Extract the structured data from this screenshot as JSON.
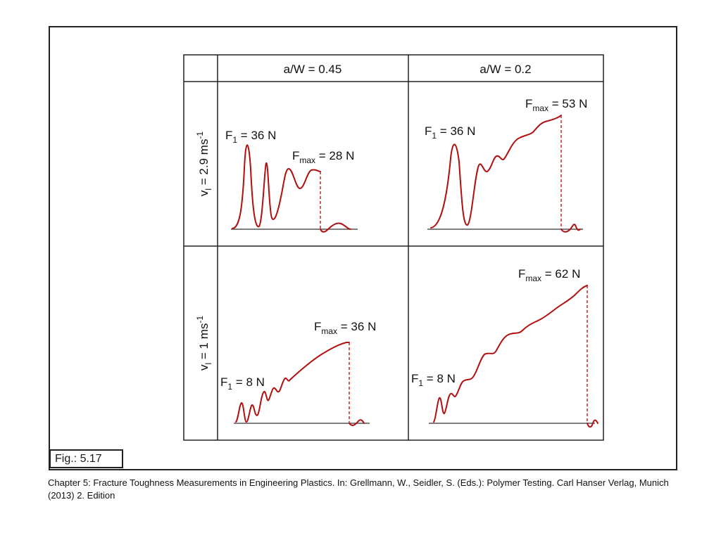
{
  "figure": {
    "columns": [
      {
        "label": "a/W = 0.45"
      },
      {
        "label": "a/W = 0.2"
      }
    ],
    "rows": [
      {
        "label_main": "v",
        "label_sub": "l",
        "label_rest": " = 2.9 ms",
        "label_sup": "-1"
      },
      {
        "label_main": "v",
        "label_sub": "l",
        "label_rest": " = 1 ms",
        "label_sup": "-1"
      }
    ],
    "panels": [
      {
        "f1_value": " = 36 N",
        "fmax_value": " = 28 N"
      },
      {
        "f1_value": " = 36 N",
        "fmax_value": " = 53 N"
      },
      {
        "f1_value": " = 8 N",
        "fmax_value": " = 36 N"
      },
      {
        "f1_value": " = 8 N",
        "fmax_value": " = 62 N"
      }
    ],
    "symbols": {
      "f": "F",
      "f1_sub": "1",
      "fmax_sub": "max"
    },
    "curve_color": "#b01010"
  },
  "fig_label": "Fig.: 5.17",
  "caption": "Chapter 5: Fracture Toughness Measurements in Engineering Plastics. In: Grellmann, W., Seidler, S. (Eds.): Polymer Testing. Carl Hanser Verlag, Munich (2013) 2. Edition"
}
